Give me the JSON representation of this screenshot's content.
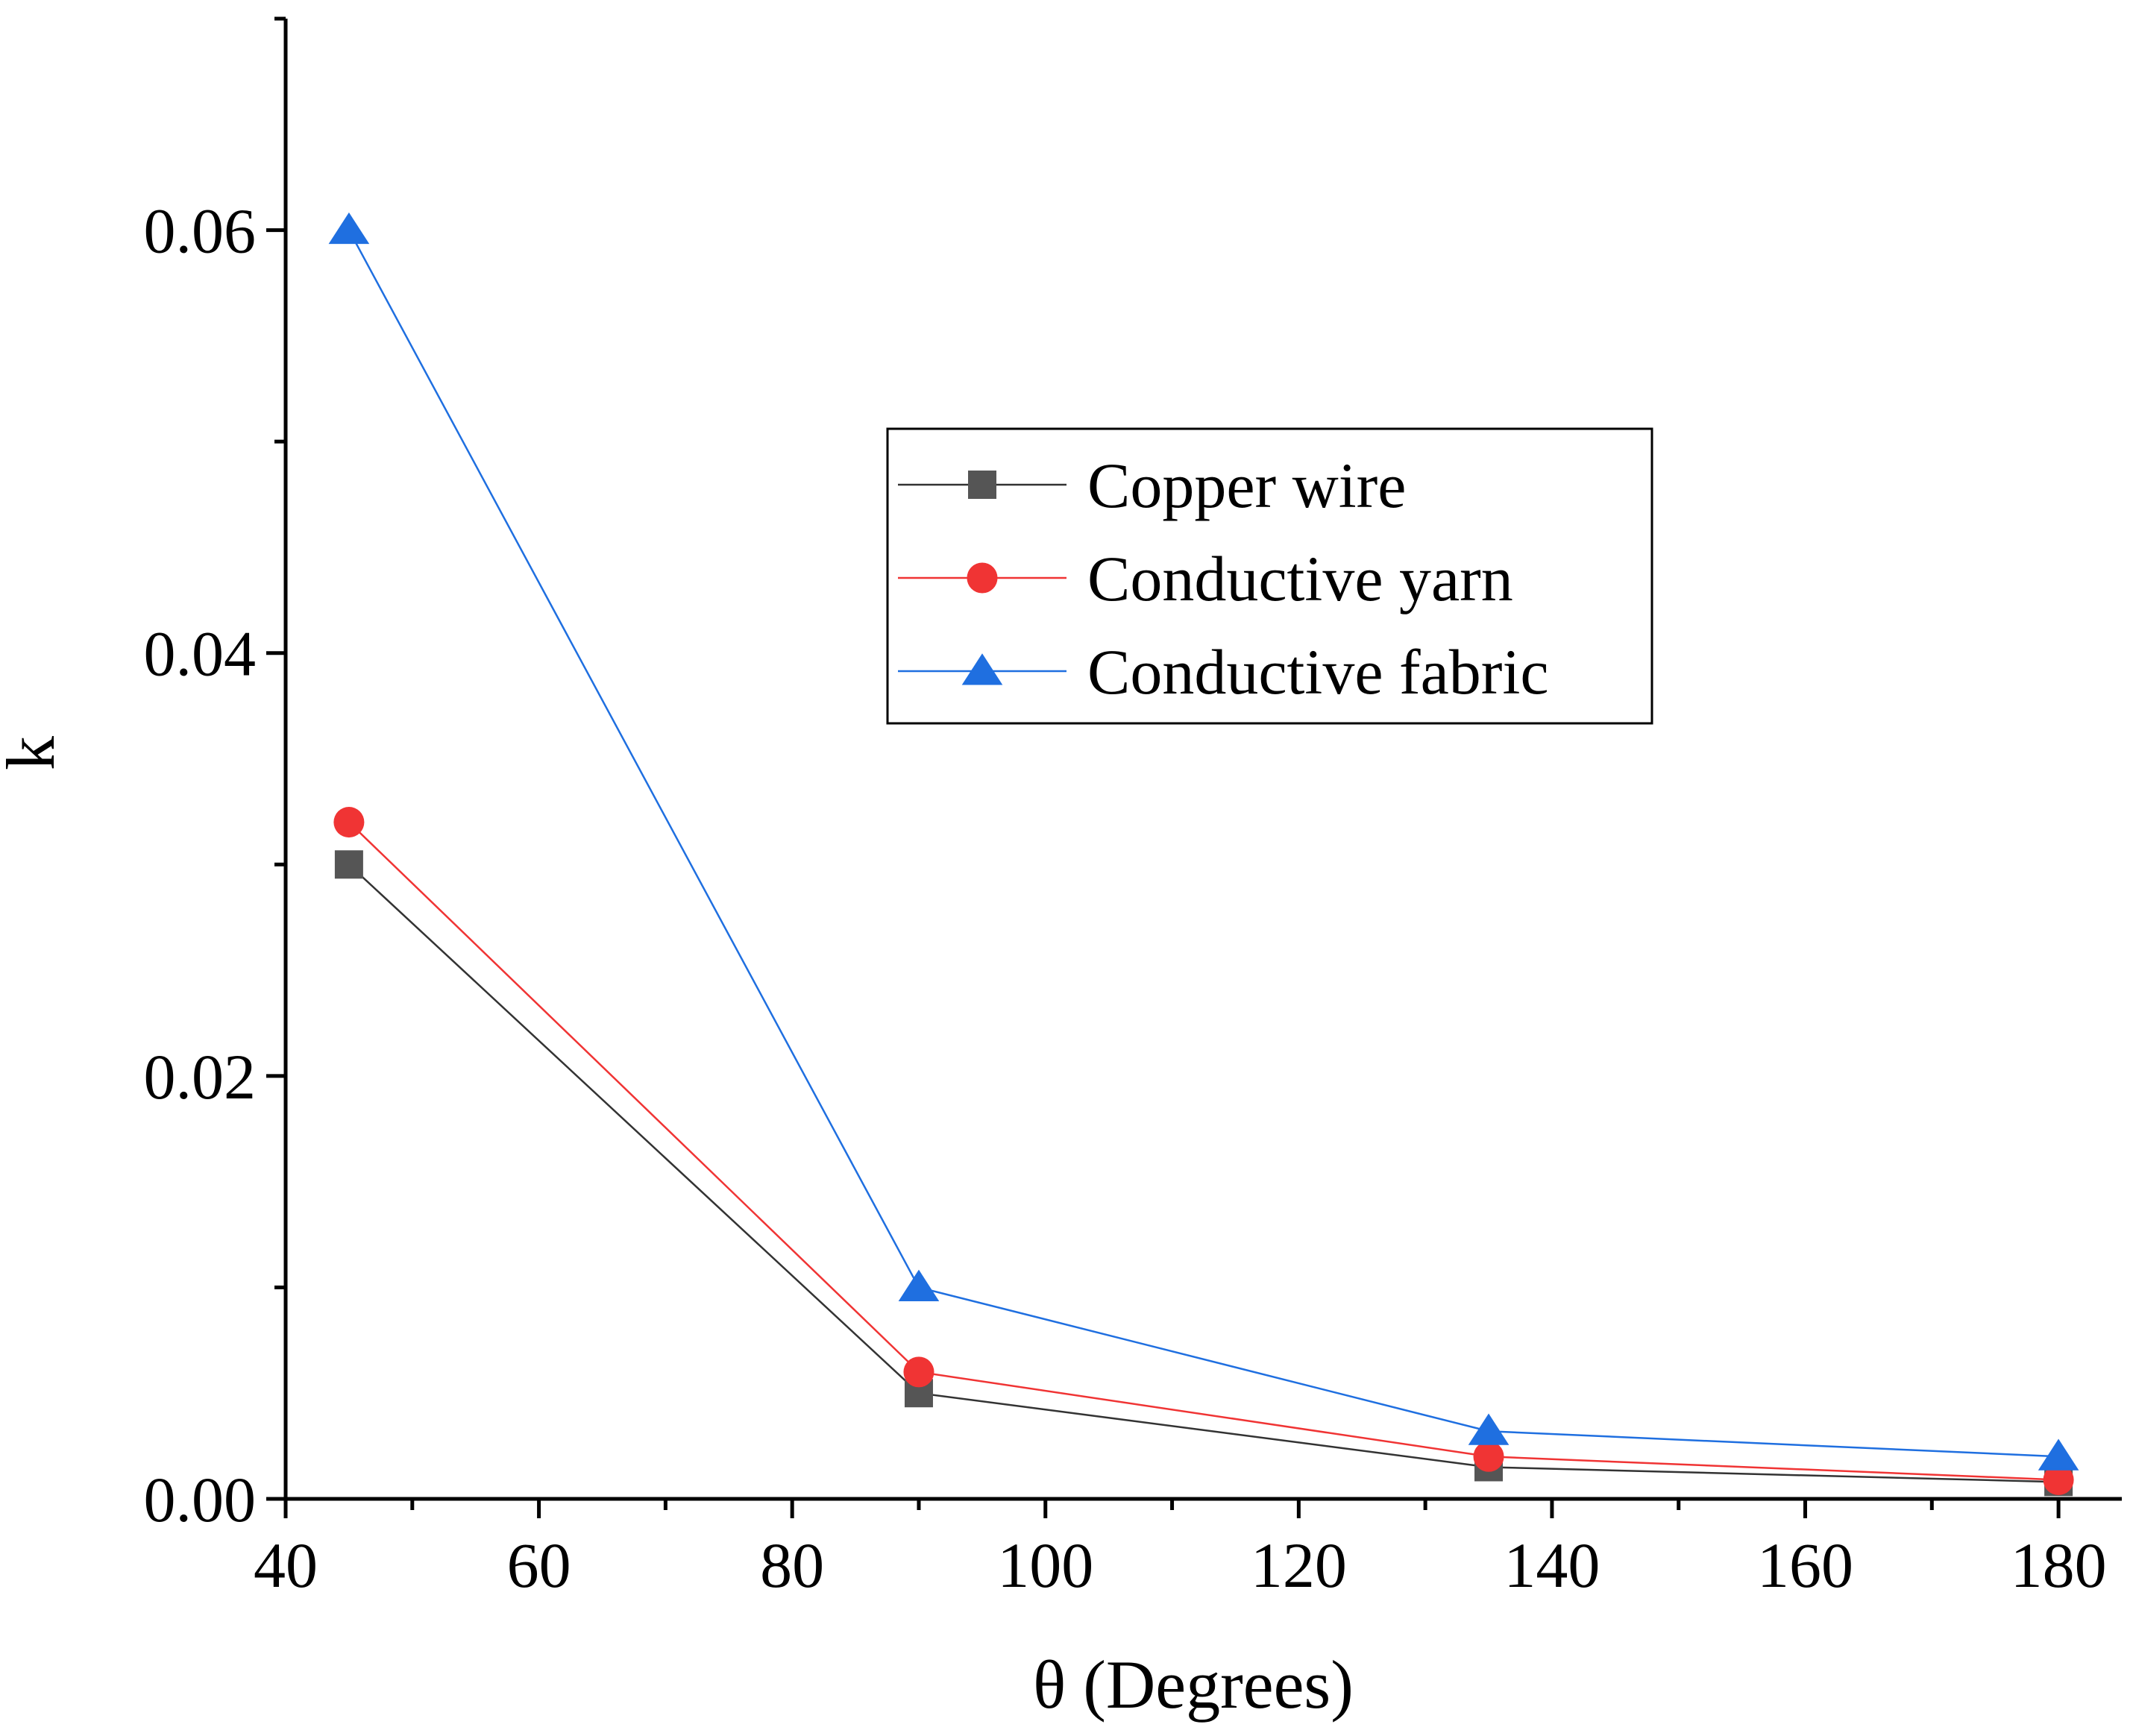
{
  "chart_data": {
    "type": "line",
    "title": "",
    "xlabel": "θ (Degrees)",
    "ylabel": "k",
    "xlim": [
      40,
      185
    ],
    "ylim": [
      0,
      0.07
    ],
    "xticks": [
      40,
      60,
      80,
      100,
      120,
      140,
      160,
      180
    ],
    "xtick_labels": [
      "40",
      "60",
      "80",
      "100",
      "120",
      "140",
      "160",
      "180"
    ],
    "yticks": [
      0,
      0.02,
      0.04,
      0.06
    ],
    "ytick_labels": [
      "0.00",
      "0.02",
      "0.04",
      "0.06"
    ],
    "grid": false,
    "legend_position": "upper-center",
    "series": [
      {
        "name": "Copper wire",
        "marker": "square",
        "color": "#555555",
        "line_color": "#333333",
        "x": [
          45,
          90,
          135,
          180
        ],
        "y": [
          0.03,
          0.005,
          0.0015,
          0.0008
        ]
      },
      {
        "name": "Conductive yarn",
        "marker": "circle",
        "color": "#f03434",
        "line_color": "#f03434",
        "x": [
          45,
          90,
          135,
          180
        ],
        "y": [
          0.032,
          0.006,
          0.002,
          0.0009
        ]
      },
      {
        "name": "Conductive fabric",
        "marker": "triangle",
        "color": "#1f6fe0",
        "line_color": "#1f6fe0",
        "x": [
          45,
          90,
          135,
          180
        ],
        "y": [
          0.06,
          0.01,
          0.0032,
          0.002
        ]
      }
    ]
  }
}
